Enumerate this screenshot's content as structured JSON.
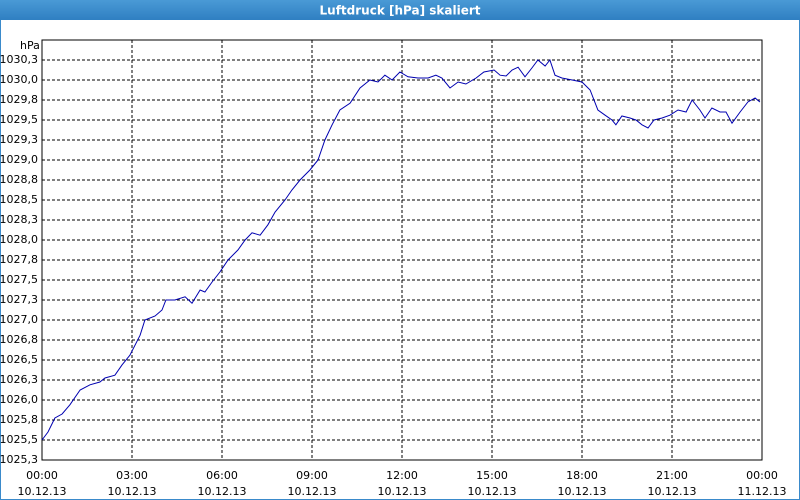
{
  "chart_data": {
    "type": "line",
    "title": "Luftdruck [hPa] skaliert",
    "ylabel": "hPa",
    "color": "#0000b0",
    "grid": true,
    "xlim": [
      0,
      24
    ],
    "xticks": [
      {
        "value": 0,
        "label": "00:00"
      },
      {
        "value": 3,
        "label": "03:00"
      },
      {
        "value": 6,
        "label": "06:00"
      },
      {
        "value": 9,
        "label": "09:00"
      },
      {
        "value": 12,
        "label": "12:00"
      },
      {
        "value": 15,
        "label": "15:00"
      },
      {
        "value": 18,
        "label": "18:00"
      },
      {
        "value": 21,
        "label": "21:00"
      },
      {
        "value": 24,
        "label": "00:00"
      }
    ],
    "xtick_dates": [
      "10.12.13",
      "10.12.13",
      "10.12.13",
      "10.12.13",
      "10.12.13",
      "10.12.13",
      "10.12.13",
      "10.12.13",
      "11.12.13"
    ],
    "ylim": [
      1025.25,
      1030.5
    ],
    "yticks": [
      {
        "value": 1025.25,
        "label": "1025,3"
      },
      {
        "value": 1025.5,
        "label": "1025,5"
      },
      {
        "value": 1025.75,
        "label": "1025,8"
      },
      {
        "value": 1026,
        "label": "1026,0"
      },
      {
        "value": 1026.25,
        "label": "1026,3"
      },
      {
        "value": 1026.5,
        "label": "1026,5"
      },
      {
        "value": 1026.75,
        "label": "1026,8"
      },
      {
        "value": 1027,
        "label": "1027,0"
      },
      {
        "value": 1027.25,
        "label": "1027,3"
      },
      {
        "value": 1027.5,
        "label": "1027,5"
      },
      {
        "value": 1027.75,
        "label": "1027,8"
      },
      {
        "value": 1028,
        "label": "1028,0"
      },
      {
        "value": 1028.25,
        "label": "1028,3"
      },
      {
        "value": 1028.5,
        "label": "1028,5"
      },
      {
        "value": 1028.75,
        "label": "1028,8"
      },
      {
        "value": 1029,
        "label": "1029,0"
      },
      {
        "value": 1029.25,
        "label": "1029,3"
      },
      {
        "value": 1029.5,
        "label": "1029,5"
      },
      {
        "value": 1029.75,
        "label": "1029,8"
      },
      {
        "value": 1030,
        "label": "1030,0"
      },
      {
        "value": 1030.25,
        "label": "1030,3"
      }
    ],
    "x": [
      0,
      0.2,
      0.43,
      0.67,
      0.93,
      1.27,
      1.6,
      1.93,
      2.1,
      2.43,
      2.67,
      2.93,
      3.27,
      3.43,
      3.77,
      4,
      4.13,
      4.43,
      4.77,
      5,
      5.27,
      5.43,
      5.67,
      5.93,
      6.2,
      6.53,
      6.77,
      7,
      7.27,
      7.53,
      7.77,
      8.1,
      8.33,
      8.6,
      8.93,
      9.2,
      9.43,
      9.67,
      9.93,
      10.27,
      10.6,
      10.93,
      11.2,
      11.43,
      11.67,
      11.93,
      12.2,
      12.53,
      12.87,
      13.13,
      13.33,
      13.6,
      13.87,
      14.13,
      14.47,
      14.73,
      15.07,
      15.27,
      15.47,
      15.67,
      15.87,
      16.1,
      16.33,
      16.53,
      16.77,
      16.93,
      17.1,
      17.33,
      17.67,
      18,
      18.27,
      18.53,
      18.77,
      19,
      19.13,
      19.33,
      19.6,
      19.8,
      20,
      20.2,
      20.4,
      20.67,
      20.93,
      21.2,
      21.47,
      21.67,
      21.93,
      22.1,
      22.33,
      22.6,
      22.8,
      23,
      23.27,
      23.53,
      23.77,
      23.93
    ],
    "values": [
      1025.5,
      1025.6,
      1025.775,
      1025.825,
      1025.94,
      1026.125,
      1026.19,
      1026.225,
      1026.275,
      1026.31,
      1026.44,
      1026.56,
      1026.81,
      1027.0,
      1027.05,
      1027.125,
      1027.25,
      1027.25,
      1027.29,
      1027.21,
      1027.375,
      1027.35,
      1027.475,
      1027.6,
      1027.75,
      1027.875,
      1028.0,
      1028.09,
      1028.06,
      1028.19,
      1028.35,
      1028.5,
      1028.625,
      1028.75,
      1028.875,
      1029.0,
      1029.25,
      1029.44,
      1029.625,
      1029.71,
      1029.9,
      1030.0,
      1029.975,
      1030.06,
      1030.0,
      1030.1,
      1030.04,
      1030.025,
      1030.025,
      1030.06,
      1030.025,
      1029.9,
      1029.975,
      1029.95,
      1030.025,
      1030.1,
      1030.125,
      1030.06,
      1030.05,
      1030.125,
      1030.16,
      1030.04,
      1030.15,
      1030.25,
      1030.175,
      1030.25,
      1030.06,
      1030.025,
      1030.0,
      1029.975,
      1029.875,
      1029.625,
      1029.56,
      1029.5,
      1029.44,
      1029.55,
      1029.525,
      1029.5,
      1029.44,
      1029.4,
      1029.5,
      1029.525,
      1029.56,
      1029.625,
      1029.6,
      1029.75,
      1029.625,
      1029.525,
      1029.65,
      1029.6,
      1029.6,
      1029.46,
      1029.6,
      1029.725,
      1029.775,
      1029.725
    ]
  }
}
